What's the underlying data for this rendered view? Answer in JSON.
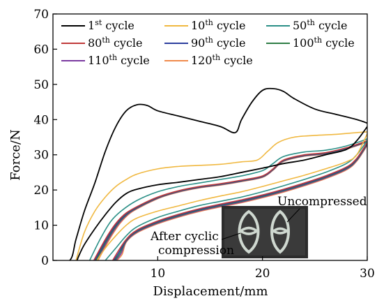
{
  "chart_data": {
    "type": "line",
    "title": "",
    "xlabel": "Displacement/mm",
    "ylabel": "Force/N",
    "xlim": [
      0,
      30
    ],
    "ylim": [
      0,
      70
    ],
    "xticks": [
      10,
      20,
      30
    ],
    "yticks": [
      0,
      10,
      20,
      30,
      40,
      50,
      60,
      70
    ],
    "grid": false,
    "legend_position": "top-left",
    "series": [
      {
        "name": "1st cycle",
        "num": "1",
        "sup": "st",
        "word": " cycle",
        "color": "#000000",
        "loading": [
          [
            0,
            0
          ],
          [
            1.6,
            0
          ],
          [
            2.2,
            6
          ],
          [
            3,
            14
          ],
          [
            4,
            22
          ],
          [
            5,
            31
          ],
          [
            6,
            38
          ],
          [
            7,
            42.5
          ],
          [
            8,
            44.2
          ],
          [
            9,
            44
          ],
          [
            10,
            42.5
          ],
          [
            12,
            41
          ],
          [
            14,
            39.5
          ],
          [
            16,
            38
          ],
          [
            17.4,
            36.3
          ],
          [
            18,
            40
          ],
          [
            19,
            45
          ],
          [
            20,
            48.3
          ],
          [
            21,
            48.8
          ],
          [
            22,
            48
          ],
          [
            23,
            46
          ],
          [
            25,
            43
          ],
          [
            27,
            41.5
          ],
          [
            29,
            40
          ],
          [
            30,
            39
          ]
        ],
        "unloading": [
          [
            30,
            38
          ],
          [
            29,
            34
          ],
          [
            28,
            31.5
          ],
          [
            26,
            30
          ],
          [
            24,
            28.5
          ],
          [
            22,
            27.5
          ],
          [
            20,
            26.2
          ],
          [
            18,
            25
          ],
          [
            16,
            23.8
          ],
          [
            14,
            23
          ],
          [
            12,
            22.2
          ],
          [
            10,
            21.5
          ],
          [
            8,
            20.2
          ],
          [
            7,
            19
          ],
          [
            6,
            16.5
          ],
          [
            5,
            13
          ],
          [
            4,
            9
          ],
          [
            3,
            4.5
          ],
          [
            2.5,
            1.5
          ],
          [
            2.3,
            0
          ]
        ]
      },
      {
        "name": "10th cycle",
        "num": "10",
        "sup": "th",
        "word": " cycle",
        "color": "#f0b840",
        "loading": [
          [
            2.2,
            0
          ],
          [
            3,
            8
          ],
          [
            4,
            14
          ],
          [
            5,
            18
          ],
          [
            6,
            21
          ],
          [
            7,
            23
          ],
          [
            8,
            24.5
          ],
          [
            10,
            26
          ],
          [
            12,
            26.7
          ],
          [
            14,
            27
          ],
          [
            16,
            27.3
          ],
          [
            18,
            28
          ],
          [
            19.5,
            28.5
          ],
          [
            20.5,
            31
          ],
          [
            21.5,
            33.5
          ],
          [
            23,
            35
          ],
          [
            25,
            35.5
          ],
          [
            27,
            35.8
          ],
          [
            29,
            36.3
          ],
          [
            30,
            36.5
          ]
        ],
        "unloading": [
          [
            30,
            36
          ],
          [
            29,
            30
          ],
          [
            28,
            28
          ],
          [
            26,
            26
          ],
          [
            24,
            24.2
          ],
          [
            22,
            22.6
          ],
          [
            20,
            21
          ],
          [
            18,
            19.5
          ],
          [
            16,
            18.3
          ],
          [
            14,
            17
          ],
          [
            12,
            15.5
          ],
          [
            10,
            14
          ],
          [
            8,
            12
          ],
          [
            7,
            10
          ],
          [
            6,
            7
          ],
          [
            5,
            3.5
          ],
          [
            4.2,
            0
          ]
        ]
      },
      {
        "name": "50th cycle",
        "num": "50",
        "sup": "th",
        "word": " cycle",
        "color": "#2a8f86",
        "loading": [
          [
            3.5,
            0
          ],
          [
            4.5,
            6
          ],
          [
            5.5,
            11
          ],
          [
            6.5,
            14
          ],
          [
            8,
            17
          ],
          [
            10,
            19.5
          ],
          [
            12,
            21
          ],
          [
            14,
            22
          ],
          [
            16,
            23
          ],
          [
            18,
            24
          ],
          [
            20,
            25.5
          ],
          [
            21,
            27.5
          ],
          [
            22,
            29.5
          ],
          [
            24,
            30.8
          ],
          [
            26,
            31.3
          ],
          [
            28,
            32.5
          ],
          [
            30,
            34.5
          ]
        ],
        "unloading": [
          [
            30,
            34
          ],
          [
            29,
            30
          ],
          [
            28,
            27.5
          ],
          [
            26,
            25
          ],
          [
            24,
            23
          ],
          [
            22,
            21.2
          ],
          [
            20,
            19.5
          ],
          [
            18,
            18
          ],
          [
            16,
            16.8
          ],
          [
            14,
            15.6
          ],
          [
            12,
            14
          ],
          [
            10,
            12.2
          ],
          [
            8,
            9.5
          ],
          [
            7,
            7
          ],
          [
            6,
            3.5
          ],
          [
            5,
            0
          ]
        ]
      },
      {
        "name": "80th cycle",
        "num": "80",
        "sup": "th",
        "word": " cycle",
        "color": "#c03a3a",
        "loading": [
          [
            3.9,
            0
          ],
          [
            5,
            6
          ],
          [
            6,
            10.5
          ],
          [
            7,
            13.5
          ],
          [
            8.5,
            16
          ],
          [
            10,
            18
          ],
          [
            12,
            19.8
          ],
          [
            14,
            21
          ],
          [
            16,
            21.8
          ],
          [
            18,
            22.8
          ],
          [
            20,
            24
          ],
          [
            21,
            26
          ],
          [
            22,
            28.5
          ],
          [
            24,
            30
          ],
          [
            26,
            30.6
          ],
          [
            28,
            32
          ],
          [
            30,
            34
          ]
        ],
        "unloading": [
          [
            30,
            33.5
          ],
          [
            29,
            29
          ],
          [
            28,
            26.5
          ],
          [
            26,
            24
          ],
          [
            24,
            22
          ],
          [
            22,
            20.2
          ],
          [
            20,
            18.6
          ],
          [
            18,
            17.2
          ],
          [
            16,
            16
          ],
          [
            14,
            14.7
          ],
          [
            12,
            13.1
          ],
          [
            10,
            11.2
          ],
          [
            8,
            8.6
          ],
          [
            7,
            6
          ],
          [
            6.2,
            2.5
          ],
          [
            5.7,
            0
          ]
        ]
      },
      {
        "name": "90th cycle",
        "num": "90",
        "sup": "th",
        "word": " cycle",
        "color": "#2c3e9e",
        "loading": [
          [
            4,
            0
          ],
          [
            5.1,
            6
          ],
          [
            6.1,
            10.5
          ],
          [
            7.1,
            13.5
          ],
          [
            8.6,
            16
          ],
          [
            10.1,
            18
          ],
          [
            12,
            19.7
          ],
          [
            14,
            20.9
          ],
          [
            16,
            21.7
          ],
          [
            18,
            22.7
          ],
          [
            20,
            23.9
          ],
          [
            21,
            25.9
          ],
          [
            22,
            28.4
          ],
          [
            24,
            29.9
          ],
          [
            26,
            30.5
          ],
          [
            28,
            31.9
          ],
          [
            30,
            33.9
          ]
        ],
        "unloading": [
          [
            30,
            33.3
          ],
          [
            29,
            28.8
          ],
          [
            28,
            26.3
          ],
          [
            26,
            23.8
          ],
          [
            24,
            21.8
          ],
          [
            22,
            20
          ],
          [
            20,
            18.4
          ],
          [
            18,
            17
          ],
          [
            16,
            15.8
          ],
          [
            14,
            14.5
          ],
          [
            12,
            12.9
          ],
          [
            10,
            11
          ],
          [
            8,
            8.4
          ],
          [
            7,
            5.8
          ],
          [
            6.3,
            2.3
          ],
          [
            5.8,
            0
          ]
        ]
      },
      {
        "name": "100th cycle",
        "num": "100",
        "sup": "th",
        "word": " cycle",
        "color": "#2e7d45",
        "loading": [
          [
            4.1,
            0
          ],
          [
            5.2,
            6
          ],
          [
            6.2,
            10.5
          ],
          [
            7.2,
            13.5
          ],
          [
            8.7,
            16
          ],
          [
            10.2,
            18
          ],
          [
            12,
            19.6
          ],
          [
            14,
            20.8
          ],
          [
            16,
            21.6
          ],
          [
            18,
            22.6
          ],
          [
            20,
            23.8
          ],
          [
            21,
            25.8
          ],
          [
            22,
            28.3
          ],
          [
            24,
            29.8
          ],
          [
            26,
            30.4
          ],
          [
            28,
            31.8
          ],
          [
            30,
            33.8
          ]
        ],
        "unloading": [
          [
            30,
            33.1
          ],
          [
            29,
            28.6
          ],
          [
            28,
            26.1
          ],
          [
            26,
            23.6
          ],
          [
            24,
            21.6
          ],
          [
            22,
            19.8
          ],
          [
            20,
            18.2
          ],
          [
            18,
            16.8
          ],
          [
            16,
            15.6
          ],
          [
            14,
            14.3
          ],
          [
            12,
            12.7
          ],
          [
            10,
            10.8
          ],
          [
            8,
            8.2
          ],
          [
            7,
            5.6
          ],
          [
            6.4,
            2.1
          ],
          [
            5.9,
            0
          ]
        ]
      },
      {
        "name": "110th cycle",
        "num": "110",
        "sup": "th",
        "word": " cycle",
        "color": "#7a3aa0",
        "loading": [
          [
            4.2,
            0
          ],
          [
            5.3,
            6
          ],
          [
            6.3,
            10.5
          ],
          [
            7.3,
            13.5
          ],
          [
            8.8,
            16
          ],
          [
            10.3,
            18
          ],
          [
            12,
            19.5
          ],
          [
            14,
            20.7
          ],
          [
            16,
            21.5
          ],
          [
            18,
            22.5
          ],
          [
            20,
            23.7
          ],
          [
            21,
            25.7
          ],
          [
            22,
            28.2
          ],
          [
            24,
            29.7
          ],
          [
            26,
            30.3
          ],
          [
            28,
            31.7
          ],
          [
            30,
            33.7
          ]
        ],
        "unloading": [
          [
            30,
            32.9
          ],
          [
            29,
            28.4
          ],
          [
            28,
            25.9
          ],
          [
            26,
            23.4
          ],
          [
            24,
            21.4
          ],
          [
            22,
            19.6
          ],
          [
            20,
            18
          ],
          [
            18,
            16.6
          ],
          [
            16,
            15.4
          ],
          [
            14,
            14.1
          ],
          [
            12,
            12.5
          ],
          [
            10,
            10.6
          ],
          [
            8,
            8
          ],
          [
            7,
            5.4
          ],
          [
            6.5,
            1.9
          ],
          [
            6,
            0
          ]
        ]
      },
      {
        "name": "120th cycle",
        "num": "120",
        "sup": "th",
        "word": " cycle",
        "color": "#f08a4b",
        "loading": [
          [
            4.3,
            0
          ],
          [
            5.4,
            6
          ],
          [
            6.4,
            10.5
          ],
          [
            7.4,
            13.5
          ],
          [
            8.9,
            16
          ],
          [
            10.4,
            18
          ],
          [
            12,
            19.4
          ],
          [
            14,
            20.6
          ],
          [
            16,
            21.4
          ],
          [
            18,
            22.4
          ],
          [
            20,
            23.6
          ],
          [
            21,
            25.6
          ],
          [
            22,
            28.1
          ],
          [
            24,
            29.6
          ],
          [
            26,
            30.2
          ],
          [
            28,
            31.6
          ],
          [
            30,
            33.6
          ]
        ],
        "unloading": [
          [
            30,
            32.7
          ],
          [
            29,
            28.2
          ],
          [
            28,
            25.7
          ],
          [
            26,
            23.2
          ],
          [
            24,
            21.2
          ],
          [
            22,
            19.4
          ],
          [
            20,
            17.8
          ],
          [
            18,
            16.4
          ],
          [
            16,
            15.2
          ],
          [
            14,
            13.9
          ],
          [
            12,
            12.3
          ],
          [
            10,
            10.4
          ],
          [
            8,
            7.8
          ],
          [
            7,
            5.2
          ],
          [
            6.6,
            1.7
          ],
          [
            6.1,
            0
          ]
        ]
      }
    ],
    "annotations": [
      {
        "id": "uncompressed",
        "text": "Uncompressed"
      },
      {
        "id": "after-cyclic",
        "lines": [
          "After cyclic",
          "compression"
        ]
      }
    ]
  }
}
